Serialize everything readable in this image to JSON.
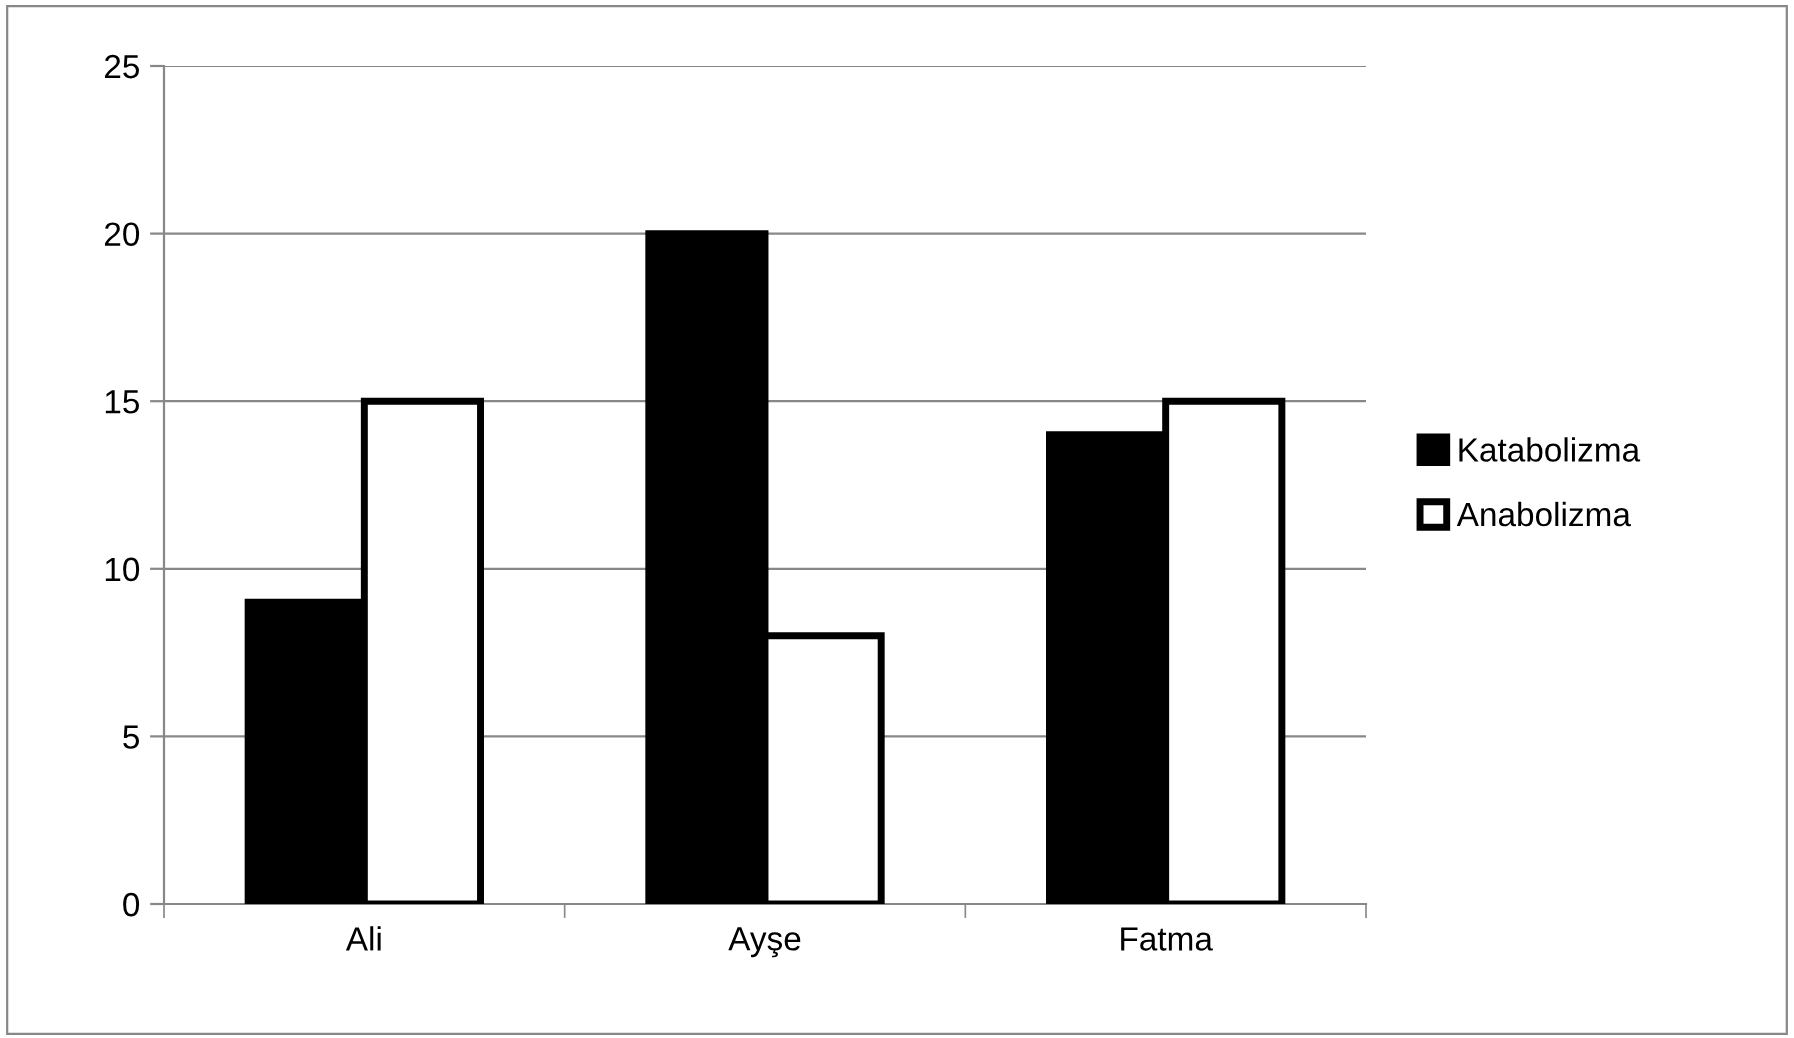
{
  "chart_data": {
    "type": "bar",
    "categories": [
      "Ali",
      "Ayşe",
      "Fatma"
    ],
    "series": [
      {
        "name": "Katabolizma",
        "color": "#000000",
        "values": [
          9,
          20,
          14
        ]
      },
      {
        "name": "Anabolizma",
        "color": "#ffffff",
        "values": [
          15,
          8,
          15
        ]
      }
    ],
    "ylim": [
      0,
      25
    ],
    "yticks": [
      0,
      5,
      10,
      15,
      20,
      25
    ],
    "grid": "y",
    "legend": "right"
  }
}
